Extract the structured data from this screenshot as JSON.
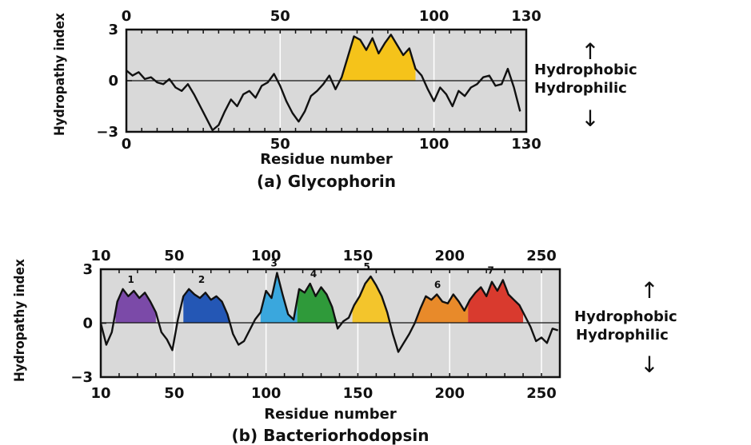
{
  "chart_data": [
    {
      "type": "line",
      "title": "",
      "caption": "(a) Glycophorin",
      "xlabel": "Residue number",
      "ylabel": "Hydropathy index",
      "xlim": [
        0,
        130
      ],
      "ylim": [
        -3,
        3
      ],
      "xticks": [
        0,
        50,
        100,
        130
      ],
      "xtick_labels": [
        "0",
        "50",
        "100",
        "130"
      ],
      "yticks": [
        3,
        0,
        -3
      ],
      "ytick_labels": [
        "3",
        "0",
        "−3"
      ],
      "grid": "vertical",
      "side_labels": {
        "up": "Hydrophobic",
        "down": "Hydrophilic"
      },
      "regions": [
        {
          "label": "",
          "color": "#f5c31a",
          "x_start": 70,
          "x_end": 94
        }
      ],
      "series": [
        {
          "x": [
            0,
            2,
            4,
            6,
            8,
            10,
            12,
            14,
            16,
            18,
            20,
            22,
            24,
            26,
            28,
            30,
            32,
            34,
            36,
            38,
            40,
            42,
            44,
            46,
            48,
            50,
            52,
            54,
            56,
            58,
            60,
            62,
            64,
            66,
            68,
            70,
            72,
            74,
            76,
            78,
            80,
            82,
            84,
            86,
            88,
            90,
            92,
            94,
            96,
            98,
            100,
            102,
            104,
            106,
            108,
            110,
            112,
            114,
            116,
            118,
            120,
            122,
            124,
            126,
            128
          ],
          "y": [
            0.6,
            0.3,
            0.5,
            0.1,
            0.2,
            -0.1,
            -0.2,
            0.1,
            -0.4,
            -0.6,
            -0.2,
            -0.8,
            -1.5,
            -2.2,
            -2.9,
            -2.6,
            -1.8,
            -1.1,
            -1.5,
            -0.8,
            -0.6,
            -1.0,
            -0.3,
            -0.1,
            0.4,
            -0.3,
            -1.2,
            -1.9,
            -2.4,
            -1.8,
            -0.9,
            -0.6,
            -0.2,
            0.3,
            -0.5,
            0.2,
            1.4,
            2.6,
            2.4,
            1.8,
            2.5,
            1.6,
            2.2,
            2.7,
            2.1,
            1.5,
            1.9,
            0.7,
            0.3,
            -0.5,
            -1.2,
            -0.4,
            -0.8,
            -1.5,
            -0.6,
            -0.9,
            -0.4,
            -0.2,
            0.2,
            0.3,
            -0.3,
            -0.2,
            0.7,
            -0.4,
            -1.8
          ]
        }
      ]
    },
    {
      "type": "line",
      "title": "",
      "caption": "(b) Bacteriorhodopsin",
      "xlabel": "Residue number",
      "ylabel": "Hydropathy index",
      "xlim": [
        10,
        260
      ],
      "ylim": [
        -3,
        3
      ],
      "xticks": [
        10,
        50,
        100,
        150,
        200,
        250
      ],
      "xtick_labels": [
        "10",
        "50",
        "100",
        "150",
        "200",
        "250"
      ],
      "yticks": [
        3,
        0,
        -3
      ],
      "ytick_labels": [
        "3",
        "0",
        "−3"
      ],
      "grid": "vertical",
      "side_labels": {
        "up": "Hydrophobic",
        "down": "Hydrophilic"
      },
      "regions": [
        {
          "label": "1",
          "color": "#7b4aa8",
          "x_start": 18,
          "x_end": 40
        },
        {
          "label": "2",
          "color": "#2457b5",
          "x_start": 55,
          "x_end": 80
        },
        {
          "label": "3",
          "color": "#3aa7dd",
          "x_start": 97,
          "x_end": 117
        },
        {
          "label": "4",
          "color": "#2f9a3a",
          "x_start": 117,
          "x_end": 140
        },
        {
          "label": "5",
          "color": "#f3c52c",
          "x_start": 147,
          "x_end": 168
        },
        {
          "label": "6",
          "color": "#e88a2a",
          "x_start": 182,
          "x_end": 210
        },
        {
          "label": "7",
          "color": "#d93a2e",
          "x_start": 210,
          "x_end": 240
        }
      ],
      "series": [
        {
          "x": [
            10,
            13,
            16,
            19,
            22,
            25,
            28,
            31,
            34,
            37,
            40,
            43,
            46,
            49,
            52,
            55,
            58,
            61,
            64,
            67,
            70,
            73,
            76,
            79,
            82,
            85,
            88,
            91,
            94,
            97,
            100,
            103,
            106,
            109,
            112,
            115,
            118,
            121,
            124,
            127,
            130,
            133,
            136,
            139,
            142,
            145,
            148,
            151,
            154,
            157,
            160,
            163,
            166,
            169,
            172,
            175,
            178,
            181,
            184,
            187,
            190,
            193,
            196,
            199,
            202,
            205,
            208,
            211,
            214,
            217,
            220,
            223,
            226,
            229,
            232,
            235,
            238,
            241,
            244,
            247,
            250,
            253,
            256,
            259
          ],
          "y": [
            0,
            -1.2,
            -0.5,
            1.2,
            1.9,
            1.5,
            1.8,
            1.4,
            1.7,
            1.2,
            0.6,
            -0.5,
            -0.9,
            -1.5,
            0.2,
            1.5,
            1.9,
            1.6,
            1.4,
            1.7,
            1.3,
            1.5,
            1.2,
            0.5,
            -0.6,
            -1.2,
            -1.0,
            -0.4,
            0.2,
            0.6,
            1.8,
            1.4,
            2.8,
            1.6,
            0.5,
            0.2,
            1.9,
            1.7,
            2.2,
            1.5,
            2.0,
            1.6,
            0.9,
            -0.3,
            0.1,
            0.3,
            1.0,
            1.5,
            2.2,
            2.6,
            2.1,
            1.5,
            0.6,
            -0.6,
            -1.6,
            -1.1,
            -0.6,
            0.0,
            0.8,
            1.5,
            1.3,
            1.6,
            1.2,
            1.1,
            1.6,
            1.2,
            0.7,
            1.3,
            1.7,
            2.0,
            1.5,
            2.3,
            1.8,
            2.4,
            1.6,
            1.3,
            1.0,
            0.4,
            -0.2,
            -1.0,
            -0.8,
            -1.1,
            -0.3,
            -0.4
          ]
        }
      ]
    }
  ]
}
